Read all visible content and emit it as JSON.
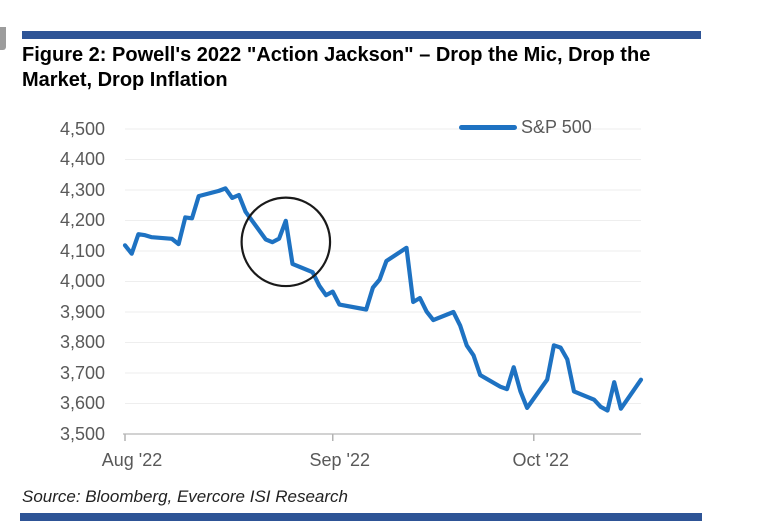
{
  "figure": {
    "title": "Figure 2: Powell's 2022 \"Action Jackson\" – Drop the Mic, Drop the Market, Drop Inflation"
  },
  "source": {
    "text": "Source: Bloomberg, Evercore ISI Research"
  },
  "colors": {
    "rule_navy": "#2e5496",
    "series_blue": "#1e72c2",
    "axis_text_gray": "#595959",
    "gridline": "#eeeeee",
    "axis_line": "#c4c4c4",
    "tick_mark": "#b3b3b3",
    "annotation_circle": "#1a1a1a",
    "title_text": "#000000",
    "source_text": "#222222"
  },
  "chart_data": {
    "type": "line",
    "title": "",
    "xlabel": "",
    "ylabel": "",
    "ylim": [
      3500,
      4500
    ],
    "y_tick_step": 100,
    "y_tick_labels": [
      "4,500",
      "4,400",
      "4,300",
      "4,200",
      "4,100",
      "4,000",
      "3,900",
      "3,800",
      "3,700",
      "3,600",
      "3,500"
    ],
    "x_tick_labels": [
      "Aug '22",
      "Sep '22",
      "Oct '22"
    ],
    "x_tick_dates": [
      "2022-08-01",
      "2022-09-01",
      "2022-10-01"
    ],
    "x_range": [
      "2022-08-01",
      "2022-10-17"
    ],
    "grid": "horizontal-light",
    "legend_position": "top-right-inside",
    "series": [
      {
        "name": "S&P 500",
        "color": "#1e72c2",
        "dates": [
          "2022-08-01",
          "2022-08-02",
          "2022-08-03",
          "2022-08-04",
          "2022-08-05",
          "2022-08-08",
          "2022-08-09",
          "2022-08-10",
          "2022-08-11",
          "2022-08-12",
          "2022-08-15",
          "2022-08-16",
          "2022-08-17",
          "2022-08-18",
          "2022-08-19",
          "2022-08-22",
          "2022-08-23",
          "2022-08-24",
          "2022-08-25",
          "2022-08-26",
          "2022-08-29",
          "2022-08-30",
          "2022-08-31",
          "2022-09-01",
          "2022-09-02",
          "2022-09-06",
          "2022-09-07",
          "2022-09-08",
          "2022-09-09",
          "2022-09-12",
          "2022-09-13",
          "2022-09-14",
          "2022-09-15",
          "2022-09-16",
          "2022-09-19",
          "2022-09-20",
          "2022-09-21",
          "2022-09-22",
          "2022-09-23",
          "2022-09-26",
          "2022-09-27",
          "2022-09-28",
          "2022-09-29",
          "2022-09-30",
          "2022-10-03",
          "2022-10-04",
          "2022-10-05",
          "2022-10-06",
          "2022-10-07",
          "2022-10-10",
          "2022-10-11",
          "2022-10-12",
          "2022-10-13",
          "2022-10-14",
          "2022-10-17"
        ],
        "values": [
          4118.63,
          4091.19,
          4155.17,
          4151.94,
          4145.19,
          4140.06,
          4122.47,
          4210.24,
          4207.27,
          4280.15,
          4297.14,
          4305.2,
          4274.04,
          4283.74,
          4228.48,
          4137.99,
          4128.73,
          4140.77,
          4199.12,
          4057.66,
          4030.61,
          3986.16,
          3955.0,
          3966.85,
          3924.26,
          3908.19,
          3979.87,
          4006.18,
          4067.36,
          4110.41,
          3932.69,
          3946.01,
          3901.35,
          3873.33,
          3899.89,
          3855.93,
          3789.93,
          3757.99,
          3693.23,
          3655.04,
          3647.29,
          3719.04,
          3640.47,
          3585.62,
          3678.43,
          3790.93,
          3783.28,
          3744.52,
          3639.66,
          3612.39,
          3588.84,
          3577.03,
          3669.91,
          3583.07,
          3677.95
        ]
      }
    ],
    "annotation_circle": {
      "shape": "circle",
      "center_date": "2022-08-25",
      "center_value": 4130,
      "radius_days": 6.6,
      "radius_points": 145
    }
  }
}
